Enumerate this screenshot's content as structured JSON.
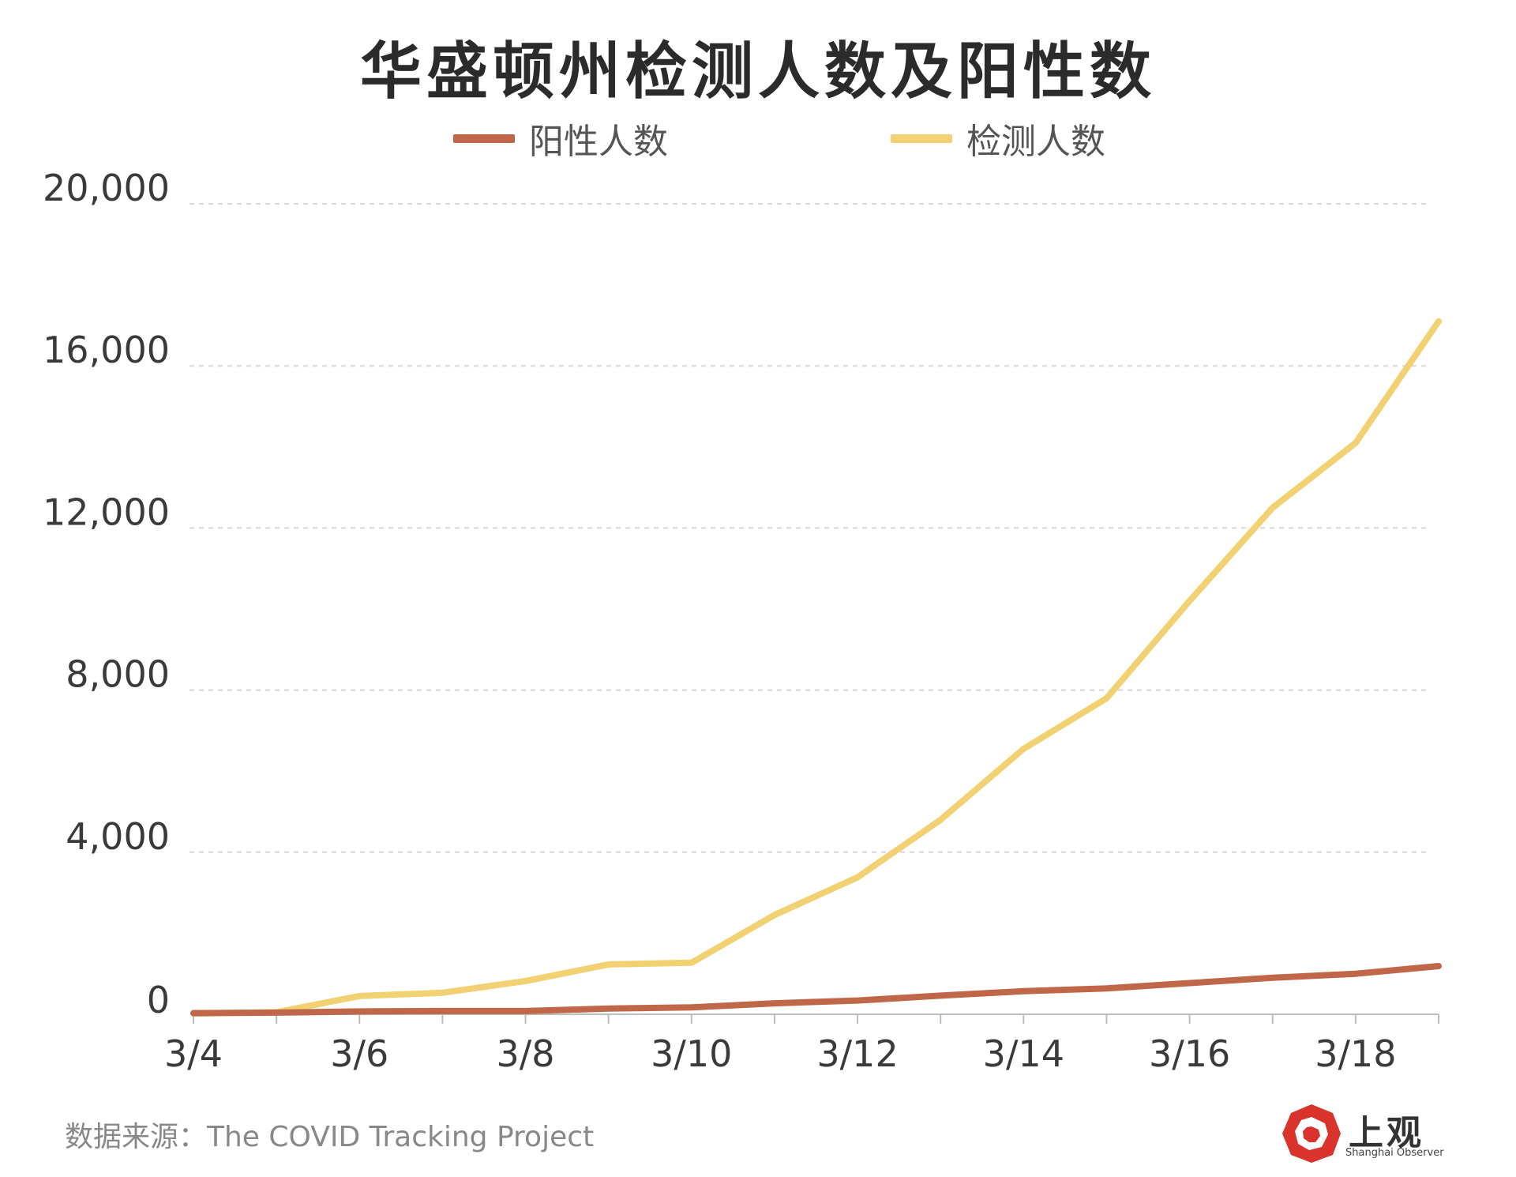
{
  "title": "华盛顿州检测人数及阳性数",
  "source": "数据来源：The COVID Tracking Project",
  "logo": {
    "text": "上观",
    "sub": "Shanghai Observer"
  },
  "colors": {
    "positive": "#c0674a",
    "tested": "#f2d173",
    "grid": "#d8d8d8",
    "axis": "#bdbdbd"
  },
  "chart_data": {
    "type": "line",
    "title": "华盛顿州检测人数及阳性数",
    "xlabel": "",
    "ylabel": "",
    "x": [
      "3/4",
      "3/5",
      "3/6",
      "3/7",
      "3/8",
      "3/9",
      "3/10",
      "3/11",
      "3/12",
      "3/13",
      "3/14",
      "3/15",
      "3/16",
      "3/17",
      "3/18",
      "3/19"
    ],
    "x_tick_labels": [
      "3/4",
      "3/6",
      "3/8",
      "3/10",
      "3/12",
      "3/14",
      "3/16",
      "3/18"
    ],
    "y_ticks": [
      0,
      4000,
      8000,
      12000,
      16000,
      20000
    ],
    "y_tick_labels": [
      "0",
      "4,000",
      "8,000",
      "12,000",
      "16,000",
      "20,000"
    ],
    "ylim": [
      0,
      20000
    ],
    "grid": true,
    "legend_position": "top-center",
    "series": [
      {
        "name": "阳性人数",
        "color": "#c0674a",
        "values": [
          30,
          40,
          70,
          80,
          80,
          140,
          170,
          270,
          340,
          460,
          570,
          640,
          770,
          900,
          1000,
          1190
        ]
      },
      {
        "name": "检测人数",
        "color": "#f2d173",
        "values": [
          20,
          50,
          450,
          530,
          820,
          1230,
          1270,
          2450,
          3380,
          4800,
          6550,
          7800,
          10200,
          12500,
          14100,
          17100
        ]
      }
    ]
  }
}
